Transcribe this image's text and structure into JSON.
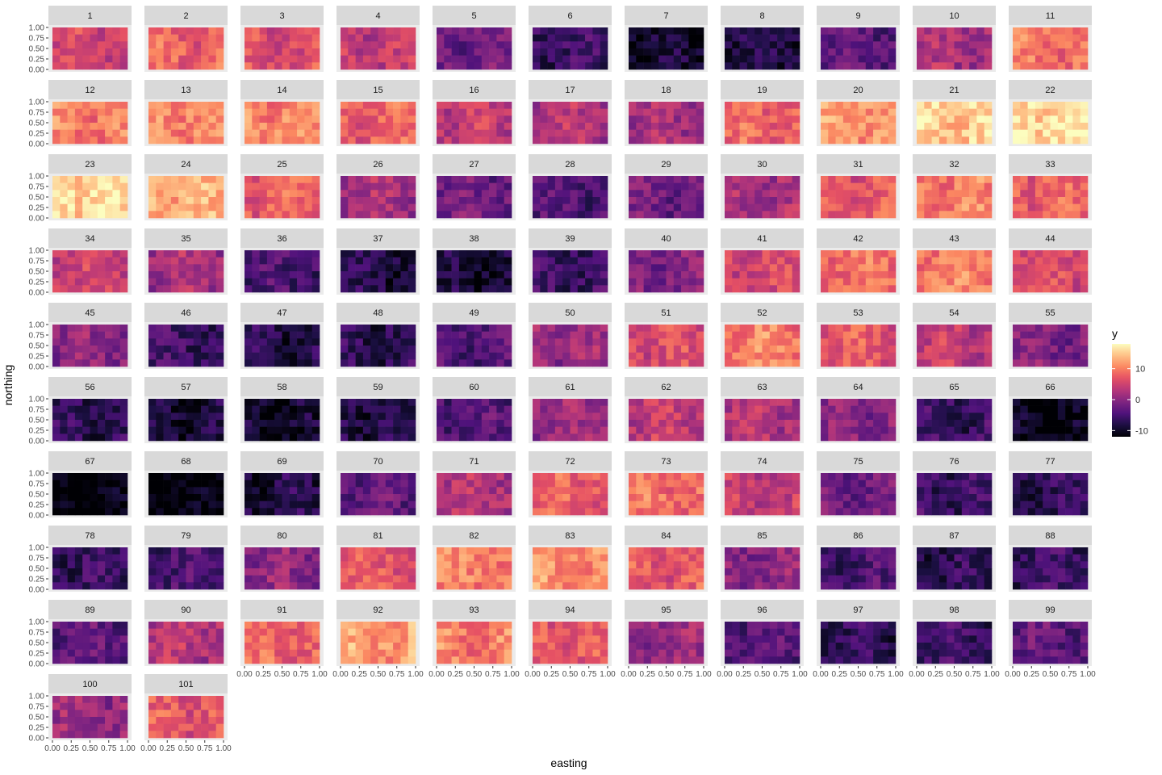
{
  "chart_data": {
    "type": "heatmap",
    "xlabel": "easting",
    "ylabel": "northing",
    "x_ticks": [
      "0.00",
      "0.25",
      "0.50",
      "0.75",
      "1.00"
    ],
    "y_ticks": [
      "0.00",
      "0.25",
      "0.50",
      "0.75",
      "1.00"
    ],
    "xlim": [
      0,
      1
    ],
    "ylim": [
      0,
      1
    ],
    "grid": true,
    "legend": {
      "title": "y",
      "position": "right",
      "ticks": [
        10,
        0,
        -10
      ],
      "range": [
        -12,
        18
      ],
      "colormap": "magma"
    },
    "facets": [
      {
        "label": "1",
        "mean": 5
      },
      {
        "label": "2",
        "mean": 8
      },
      {
        "label": "3",
        "mean": 6
      },
      {
        "label": "4",
        "mean": 4
      },
      {
        "label": "5",
        "mean": -2
      },
      {
        "label": "6",
        "mean": -6
      },
      {
        "label": "7",
        "mean": -9
      },
      {
        "label": "8",
        "mean": -8
      },
      {
        "label": "9",
        "mean": -3
      },
      {
        "label": "10",
        "mean": 2
      },
      {
        "label": "11",
        "mean": 9
      },
      {
        "label": "12",
        "mean": 10
      },
      {
        "label": "13",
        "mean": 11
      },
      {
        "label": "14",
        "mean": 11
      },
      {
        "label": "15",
        "mean": 8
      },
      {
        "label": "16",
        "mean": 4
      },
      {
        "label": "17",
        "mean": 3
      },
      {
        "label": "18",
        "mean": 2
      },
      {
        "label": "19",
        "mean": 8
      },
      {
        "label": "20",
        "mean": 12
      },
      {
        "label": "21",
        "mean": 15
      },
      {
        "label": "22",
        "mean": 16
      },
      {
        "label": "23",
        "mean": 16
      },
      {
        "label": "24",
        "mean": 13
      },
      {
        "label": "25",
        "mean": 8
      },
      {
        "label": "26",
        "mean": 2
      },
      {
        "label": "27",
        "mean": -2
      },
      {
        "label": "28",
        "mean": -4
      },
      {
        "label": "29",
        "mean": -2
      },
      {
        "label": "30",
        "mean": 2
      },
      {
        "label": "31",
        "mean": 7
      },
      {
        "label": "32",
        "mean": 10
      },
      {
        "label": "33",
        "mean": 8
      },
      {
        "label": "34",
        "mean": 5
      },
      {
        "label": "35",
        "mean": 2
      },
      {
        "label": "36",
        "mean": -5
      },
      {
        "label": "37",
        "mean": -8
      },
      {
        "label": "38",
        "mean": -9
      },
      {
        "label": "39",
        "mean": -6
      },
      {
        "label": "40",
        "mean": -1
      },
      {
        "label": "41",
        "mean": 5
      },
      {
        "label": "42",
        "mean": 9
      },
      {
        "label": "43",
        "mean": 10
      },
      {
        "label": "44",
        "mean": 6
      },
      {
        "label": "45",
        "mean": 0
      },
      {
        "label": "46",
        "mean": -6
      },
      {
        "label": "47",
        "mean": -8
      },
      {
        "label": "48",
        "mean": -7
      },
      {
        "label": "49",
        "mean": -4
      },
      {
        "label": "50",
        "mean": 1
      },
      {
        "label": "51",
        "mean": 6
      },
      {
        "label": "52",
        "mean": 10
      },
      {
        "label": "53",
        "mean": 7
      },
      {
        "label": "54",
        "mean": 4
      },
      {
        "label": "55",
        "mean": -1
      },
      {
        "label": "56",
        "mean": -7
      },
      {
        "label": "57",
        "mean": -9
      },
      {
        "label": "58",
        "mean": -10
      },
      {
        "label": "59",
        "mean": -8
      },
      {
        "label": "60",
        "mean": -4
      },
      {
        "label": "61",
        "mean": 1
      },
      {
        "label": "62",
        "mean": 4
      },
      {
        "label": "63",
        "mean": 3
      },
      {
        "label": "64",
        "mean": 0
      },
      {
        "label": "65",
        "mean": -6
      },
      {
        "label": "66",
        "mean": -11
      },
      {
        "label": "67",
        "mean": -12
      },
      {
        "label": "68",
        "mean": -12
      },
      {
        "label": "69",
        "mean": -8
      },
      {
        "label": "70",
        "mean": -3
      },
      {
        "label": "71",
        "mean": 3
      },
      {
        "label": "72",
        "mean": 8
      },
      {
        "label": "73",
        "mean": 9
      },
      {
        "label": "74",
        "mean": 4
      },
      {
        "label": "75",
        "mean": -2
      },
      {
        "label": "76",
        "mean": -6
      },
      {
        "label": "77",
        "mean": -7
      },
      {
        "label": "78",
        "mean": -6
      },
      {
        "label": "79",
        "mean": -5
      },
      {
        "label": "80",
        "mean": 0
      },
      {
        "label": "81",
        "mean": 7
      },
      {
        "label": "82",
        "mean": 10
      },
      {
        "label": "83",
        "mean": 11
      },
      {
        "label": "84",
        "mean": 7
      },
      {
        "label": "85",
        "mean": 0
      },
      {
        "label": "86",
        "mean": -5
      },
      {
        "label": "87",
        "mean": -7
      },
      {
        "label": "88",
        "mean": -6
      },
      {
        "label": "89",
        "mean": -3
      },
      {
        "label": "90",
        "mean": 3
      },
      {
        "label": "91",
        "mean": 8
      },
      {
        "label": "92",
        "mean": 12
      },
      {
        "label": "93",
        "mean": 10
      },
      {
        "label": "94",
        "mean": 7
      },
      {
        "label": "95",
        "mean": 1
      },
      {
        "label": "96",
        "mean": -4
      },
      {
        "label": "97",
        "mean": -7
      },
      {
        "label": "98",
        "mean": -6
      },
      {
        "label": "99",
        "mean": -3
      },
      {
        "label": "100",
        "mean": 1
      },
      {
        "label": "101",
        "mean": 7
      }
    ]
  }
}
